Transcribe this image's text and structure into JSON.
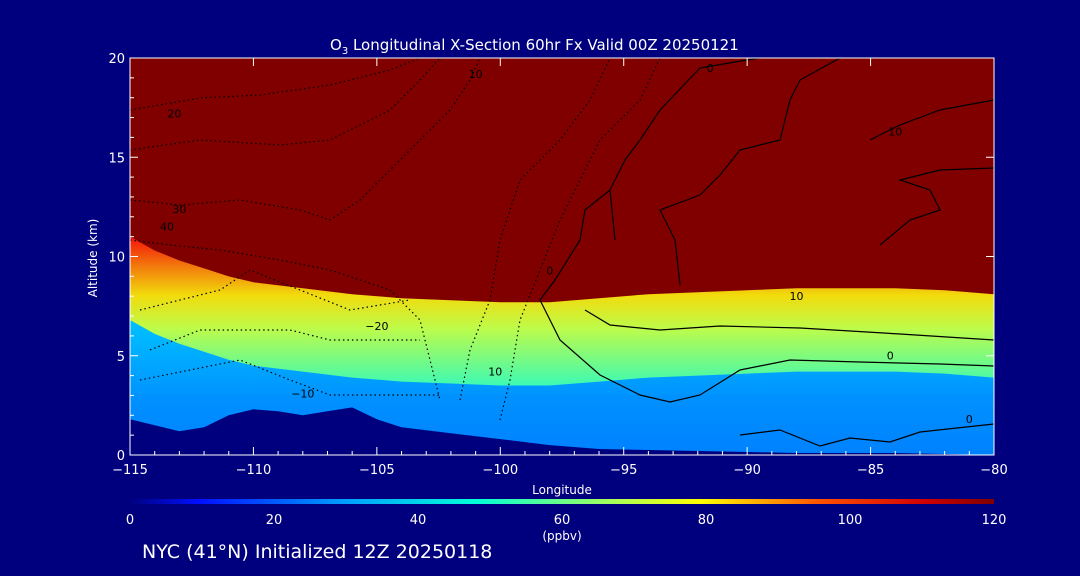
{
  "chart_data": {
    "type": "heatmap",
    "title_main": "O",
    "title_sub": "3",
    "title_rest": " Longitudinal X-Section 60hr  Fx Valid 00Z 20250121",
    "xlabel": "Longitude",
    "ylabel": "Altitude (km)",
    "xlim": [
      -115,
      -80
    ],
    "ylim": [
      0,
      20
    ],
    "x_ticks": [
      -115,
      -110,
      -105,
      -100,
      -95,
      -90,
      -85,
      -80
    ],
    "x_tick_labels": [
      "−115",
      "−110",
      "−105",
      "−100",
      "−95",
      "−90",
      "−85",
      "−80"
    ],
    "y_ticks": [
      0,
      5,
      10,
      15,
      20
    ],
    "y_tick_labels": [
      "0",
      "5",
      "10",
      "15",
      "20"
    ],
    "colorbar": {
      "ticks": [
        0,
        20,
        40,
        60,
        80,
        100,
        120
      ],
      "tick_labels": [
        "0",
        "20",
        "40",
        "60",
        "80",
        "100",
        "120"
      ],
      "units": "(ppbv)",
      "range": [
        0,
        120
      ]
    },
    "tropopause_altitude_km": [
      [
        -115,
        11.0
      ],
      [
        -114,
        10.3
      ],
      [
        -113,
        9.8
      ],
      [
        -112,
        9.4
      ],
      [
        -111,
        9.0
      ],
      [
        -110,
        8.7
      ],
      [
        -108,
        8.4
      ],
      [
        -106,
        8.1
      ],
      [
        -104,
        7.9
      ],
      [
        -102,
        7.8
      ],
      [
        -100,
        7.7
      ],
      [
        -98,
        7.7
      ],
      [
        -96,
        7.9
      ],
      [
        -94,
        8.1
      ],
      [
        -92,
        8.2
      ],
      [
        -90,
        8.3
      ],
      [
        -88,
        8.4
      ],
      [
        -86,
        8.4
      ],
      [
        -84,
        8.4
      ],
      [
        -82,
        8.3
      ],
      [
        -80,
        8.1
      ]
    ],
    "terrain_altitude_km": [
      [
        -115,
        1.8
      ],
      [
        -114,
        1.5
      ],
      [
        -113,
        1.2
      ],
      [
        -112,
        1.4
      ],
      [
        -111,
        2.0
      ],
      [
        -110,
        2.3
      ],
      [
        -109,
        2.2
      ],
      [
        -108,
        2.0
      ],
      [
        -107,
        2.2
      ],
      [
        -106,
        2.4
      ],
      [
        -105,
        1.8
      ],
      [
        -104,
        1.4
      ],
      [
        -102,
        1.1
      ],
      [
        -100,
        0.8
      ],
      [
        -98,
        0.5
      ],
      [
        -96,
        0.3
      ],
      [
        -94,
        0.25
      ],
      [
        -92,
        0.2
      ],
      [
        -90,
        0.15
      ],
      [
        -88,
        0.1
      ],
      [
        -86,
        0.1
      ],
      [
        -84,
        0.1
      ],
      [
        -82,
        0.05
      ],
      [
        -80,
        0.0
      ]
    ],
    "contour_labels": [
      {
        "text": "0",
        "lon": -91.5,
        "alt": 19.3
      },
      {
        "text": "10",
        "lon": -84.0,
        "alt": 16.1
      },
      {
        "text": "10",
        "lon": -101.0,
        "alt": 19.0
      },
      {
        "text": "20",
        "lon": -113.2,
        "alt": 17.0
      },
      {
        "text": "30",
        "lon": -113.0,
        "alt": 12.2
      },
      {
        "text": "40",
        "lon": -113.5,
        "alt": 11.3
      },
      {
        "text": "0",
        "lon": -98.0,
        "alt": 9.1
      },
      {
        "text": "10",
        "lon": -88.0,
        "alt": 7.8
      },
      {
        "text": "−20",
        "lon": -105.0,
        "alt": 6.3
      },
      {
        "text": "0",
        "lon": -84.2,
        "alt": 4.8
      },
      {
        "text": "10",
        "lon": -100.2,
        "alt": 4.0
      },
      {
        "text": "−10",
        "lon": -108.0,
        "alt": 2.9
      },
      {
        "text": "0",
        "lon": -81.0,
        "alt": 1.6
      }
    ]
  },
  "footer": "NYC (41°N) Initialized 12Z 20250118"
}
